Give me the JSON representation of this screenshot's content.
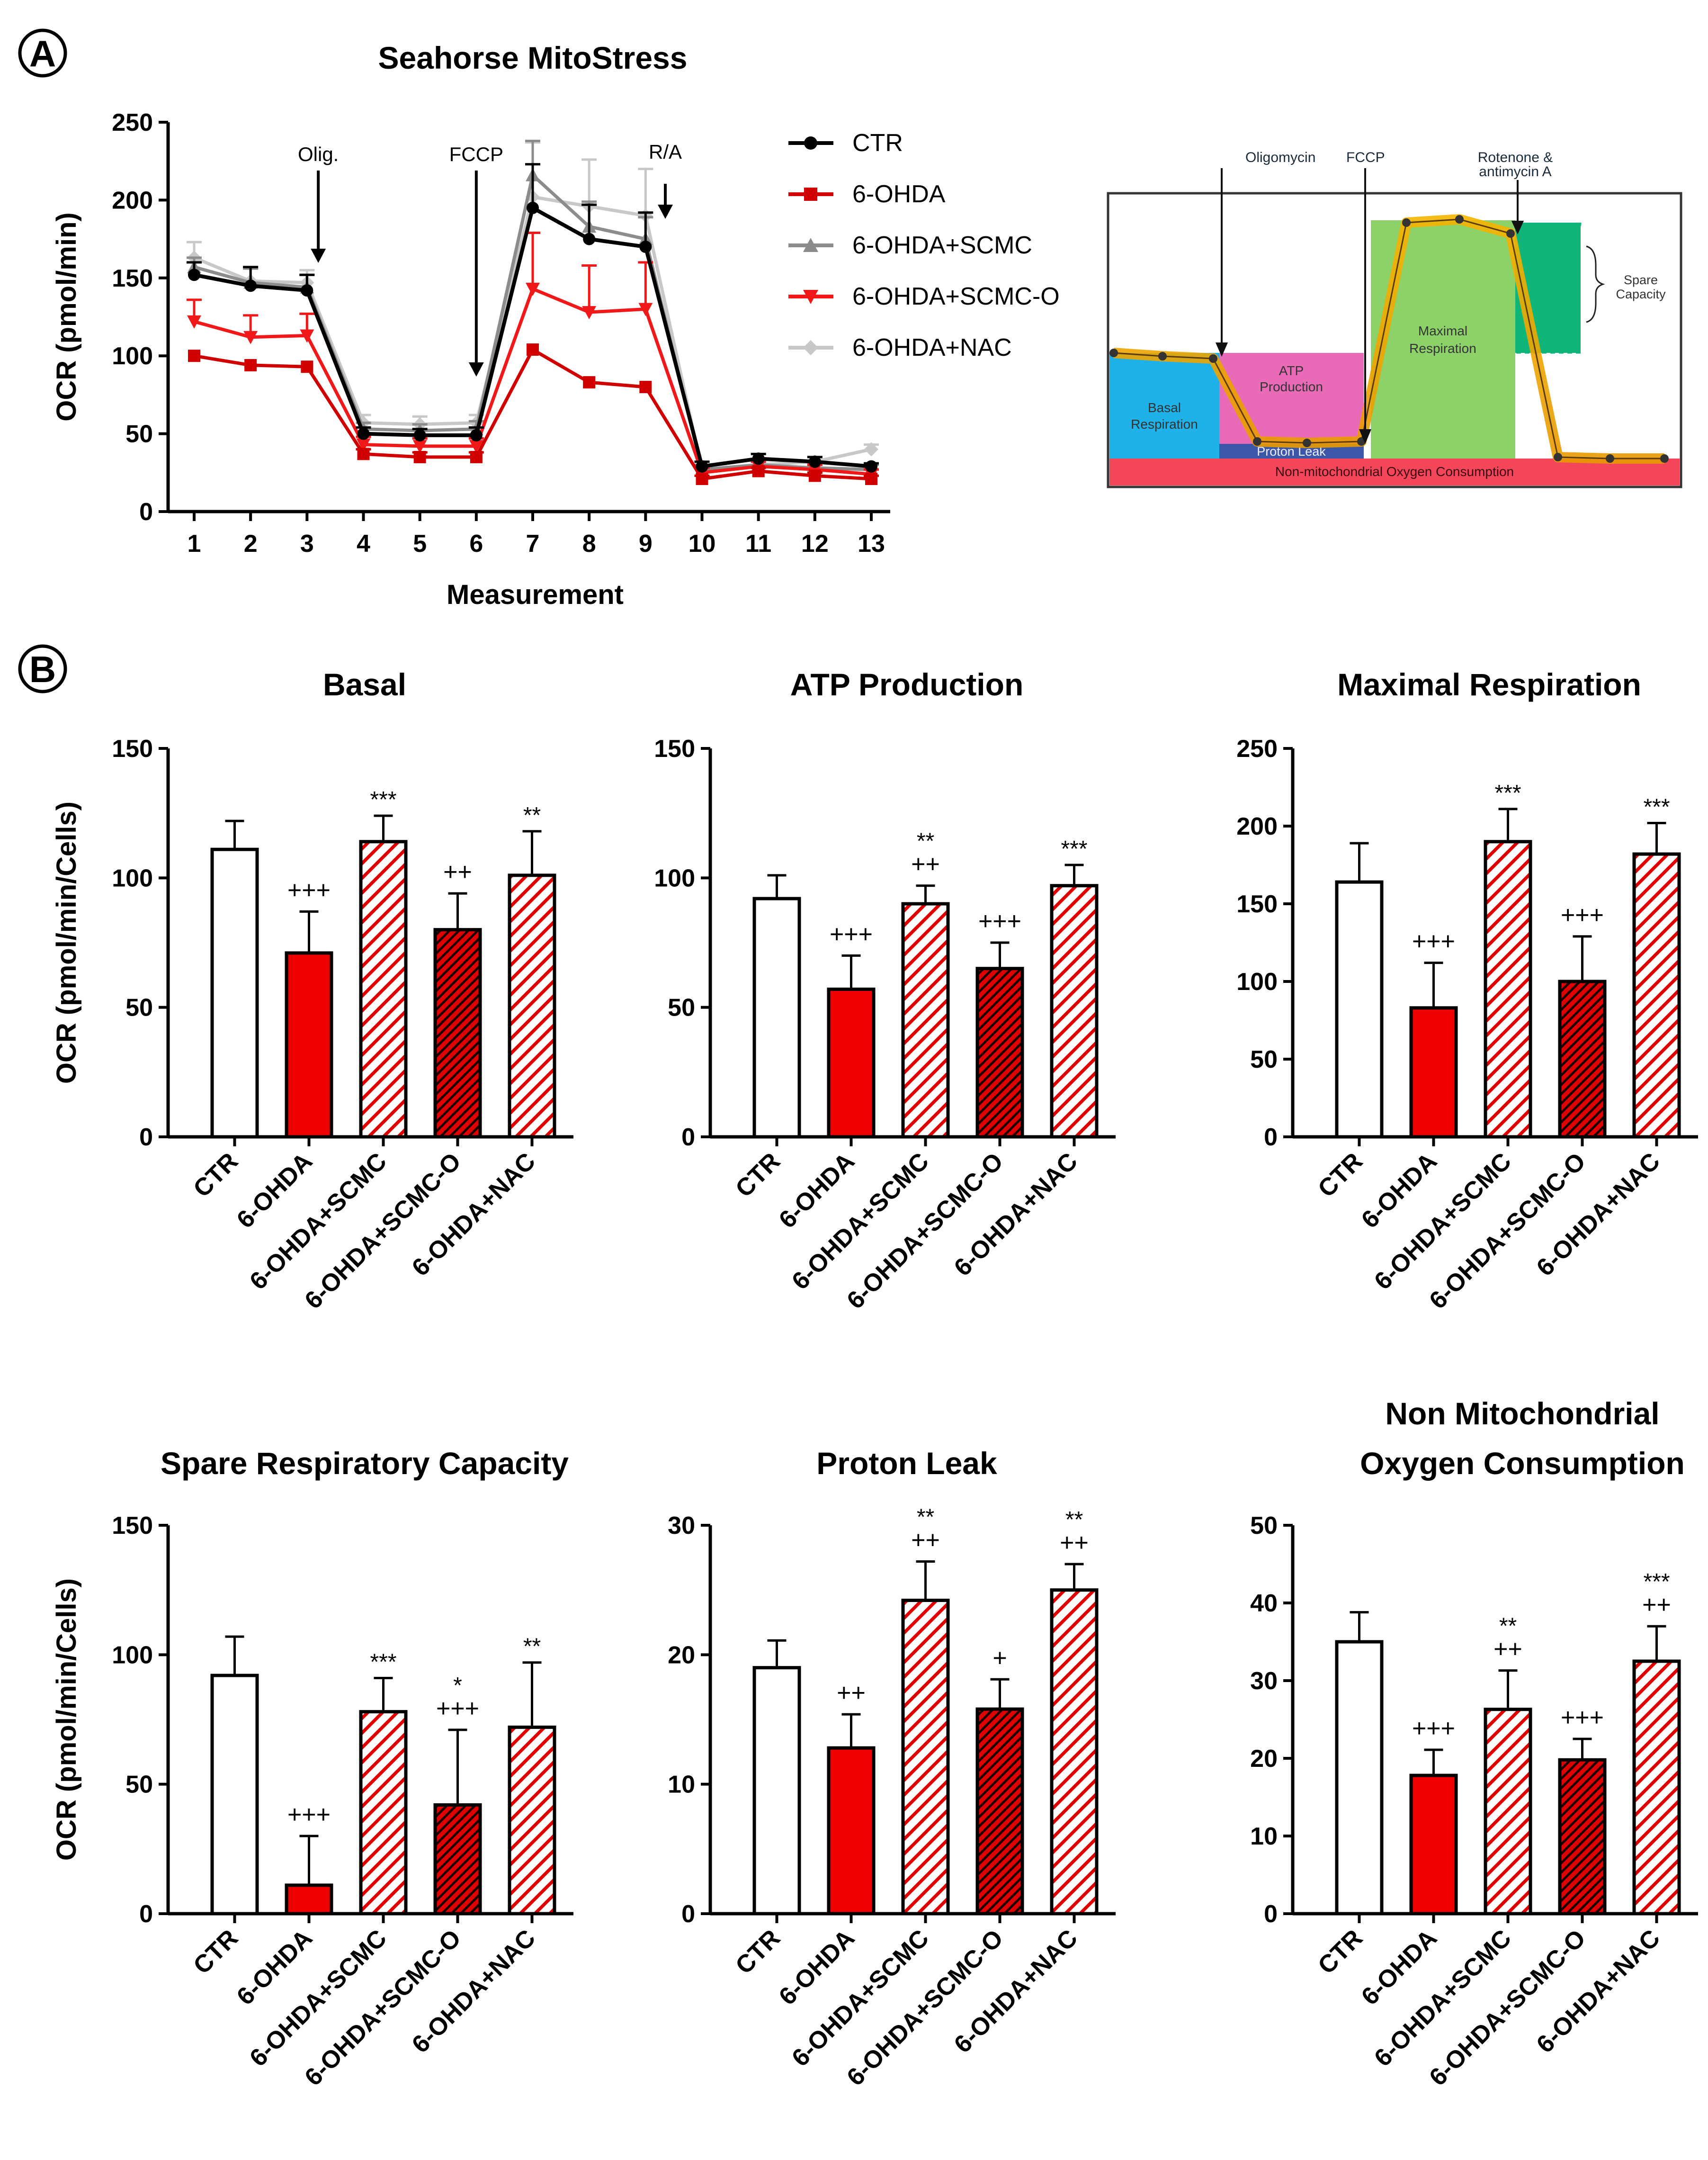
{
  "panel_labels": {
    "a": "A",
    "b": "B"
  },
  "colors": {
    "black": "#000000",
    "red": "#e00000",
    "gray": "#8c8c8c",
    "red2": "#f02020",
    "light": "#cfcfcf",
    "darkred": "#b00000"
  },
  "chart_data": [
    {
      "type": "line",
      "title": "Seahorse  MitoStress",
      "xlabel": "Measurement",
      "ylabel": "OCR (pmol/min)",
      "x": [
        1,
        2,
        3,
        4,
        5,
        6,
        7,
        8,
        9,
        10,
        11,
        12,
        13
      ],
      "ylim": [
        0,
        250
      ],
      "yticks": [
        0,
        50,
        100,
        150,
        200,
        250
      ],
      "annotations": [
        {
          "label": "Olig.",
          "x": 3.2
        },
        {
          "label": "FCCP",
          "x": 6.0
        },
        {
          "label": "R/A",
          "x": 9.35
        }
      ],
      "series": [
        {
          "name": "CTR",
          "color": "#000000",
          "marker": "circle",
          "values": [
            152,
            145,
            142,
            50,
            49,
            49,
            195,
            175,
            170,
            29,
            34,
            32,
            29
          ],
          "err": [
            8,
            12,
            10,
            4,
            4,
            5,
            28,
            22,
            22,
            3,
            3,
            3,
            2
          ]
        },
        {
          "name": "6-OHDA",
          "color": "#d00000",
          "marker": "square",
          "values": [
            100,
            94,
            93,
            37,
            35,
            35,
            104,
            83,
            80,
            21,
            26,
            23,
            21
          ],
          "err": [
            0,
            0,
            0,
            3,
            3,
            3,
            0,
            0,
            0,
            2,
            2,
            2,
            2
          ]
        },
        {
          "name": "6-OHDA+SCMC",
          "color": "#8c8c8c",
          "marker": "triangle",
          "values": [
            157,
            147,
            144,
            53,
            52,
            53,
            216,
            183,
            175,
            27,
            30,
            28,
            27
          ],
          "err": [
            6,
            9,
            8,
            4,
            4,
            5,
            22,
            16,
            14,
            3,
            3,
            3,
            3
          ]
        },
        {
          "name": "6-OHDA+SCMC-O",
          "color": "#f01818",
          "marker": "triangle-down",
          "values": [
            122,
            112,
            113,
            43,
            42,
            42,
            143,
            128,
            130,
            25,
            29,
            27,
            24
          ],
          "err": [
            14,
            14,
            14,
            5,
            5,
            5,
            36,
            30,
            30,
            3,
            3,
            3,
            3
          ]
        },
        {
          "name": "6-OHDA+NAC",
          "color": "#c8c8c8",
          "marker": "diamond",
          "values": [
            163,
            148,
            147,
            57,
            56,
            57,
            202,
            196,
            190,
            27,
            30,
            32,
            40
          ],
          "err": [
            10,
            9,
            8,
            5,
            5,
            5,
            35,
            30,
            30,
            3,
            3,
            3,
            3
          ]
        }
      ]
    },
    {
      "type": "bar",
      "title": "Basal",
      "ylabel": "OCR (pmol/min/Cells)",
      "ylim": [
        0,
        150
      ],
      "yticks": [
        0,
        50,
        100,
        150
      ],
      "categories": [
        "CTR",
        "6-OHDA",
        "6-OHDA+SCMC",
        "6-OHDA+SCMC-O",
        "6-OHDA+NAC"
      ],
      "values": [
        111,
        71,
        114,
        80,
        101
      ],
      "err": [
        11,
        16,
        10,
        14,
        17
      ],
      "annotations": [
        [],
        [
          "+++"
        ],
        [
          "***"
        ],
        [
          "++"
        ],
        [
          "**"
        ]
      ]
    },
    {
      "type": "bar",
      "title": "ATP Production",
      "ylabel": "",
      "ylim": [
        0,
        150
      ],
      "yticks": [
        0,
        50,
        100,
        150
      ],
      "categories": [
        "CTR",
        "6-OHDA",
        "6-OHDA+SCMC",
        "6-OHDA+SCMC-O",
        "6-OHDA+NAC"
      ],
      "values": [
        92,
        57,
        90,
        65,
        97
      ],
      "err": [
        9,
        13,
        7,
        10,
        8
      ],
      "annotations": [
        [],
        [
          "+++"
        ],
        [
          "**",
          "++"
        ],
        [
          "+++"
        ],
        [
          "***"
        ]
      ]
    },
    {
      "type": "bar",
      "title": "Maximal Respiration",
      "ylabel": "",
      "ylim": [
        0,
        250
      ],
      "yticks": [
        0,
        50,
        100,
        150,
        200,
        250
      ],
      "categories": [
        "CTR",
        "6-OHDA",
        "6-OHDA+SCMC",
        "6-OHDA+SCMC-O",
        "6-OHDA+NAC"
      ],
      "values": [
        164,
        83,
        190,
        100,
        182
      ],
      "err": [
        25,
        29,
        21,
        29,
        20
      ],
      "annotations": [
        [],
        [
          "+++"
        ],
        [
          "***"
        ],
        [
          "+++"
        ],
        [
          "***"
        ]
      ]
    },
    {
      "type": "bar",
      "title": "Spare Respiratory Capacity",
      "ylabel": "OCR (pmol/min/Cells)",
      "ylim": [
        0,
        150
      ],
      "yticks": [
        0,
        50,
        100,
        150
      ],
      "categories": [
        "CTR",
        "6-OHDA",
        "6-OHDA+SCMC",
        "6-OHDA+SCMC-O",
        "6-OHDA+NAC"
      ],
      "values": [
        92,
        11,
        78,
        42,
        72
      ],
      "err": [
        15,
        19,
        13,
        29,
        25
      ],
      "annotations": [
        [],
        [
          "+++"
        ],
        [
          "***"
        ],
        [
          "*",
          "+++"
        ],
        [
          "**"
        ]
      ]
    },
    {
      "type": "bar",
      "title": "Proton Leak",
      "ylabel": "",
      "ylim": [
        0,
        30
      ],
      "yticks": [
        0,
        10,
        20,
        30
      ],
      "categories": [
        "CTR",
        "6-OHDA",
        "6-OHDA+SCMC",
        "6-OHDA+SCMC-O",
        "6-OHDA+NAC"
      ],
      "values": [
        19,
        12.8,
        24.2,
        15.8,
        25
      ],
      "err": [
        2.1,
        2.6,
        3,
        2.3,
        2
      ],
      "annotations": [
        [],
        [
          "++"
        ],
        [
          "**",
          "++"
        ],
        [
          "+"
        ],
        [
          "**",
          "++"
        ]
      ]
    },
    {
      "type": "bar",
      "title": "Non Mitochondrial Oxygen Consumption",
      "title_lines": [
        "Non Mitochondrial",
        "Oxygen Consumption"
      ],
      "ylabel": "",
      "ylim": [
        0,
        50
      ],
      "yticks": [
        0,
        10,
        20,
        30,
        40,
        50
      ],
      "categories": [
        "CTR",
        "6-OHDA",
        "6-OHDA+SCMC",
        "6-OHDA+SCMC-O",
        "6-OHDA+NAC"
      ],
      "values": [
        35,
        17.8,
        26.3,
        19.8,
        32.5
      ],
      "err": [
        3.8,
        3.3,
        5,
        2.7,
        4.5
      ],
      "annotations": [
        [],
        [
          "+++"
        ],
        [
          "**",
          "++"
        ],
        [
          "+++"
        ],
        [
          "***",
          "++"
        ]
      ]
    }
  ],
  "schematic": {
    "labels": {
      "oligomycin": "Oligomycin",
      "fccp": "FCCP",
      "rotenone_1": "Rotenone &",
      "rotenone_2": "antimycin A",
      "spare_1": "Spare",
      "spare_2": "Capacity",
      "maximal_1": "Maximal",
      "maximal_2": "Respiration",
      "atp_1": "ATP",
      "atp_2": "Production",
      "basal_1": "Basal",
      "basal_2": "Respiration",
      "proton": "Proton Leak",
      "nonmito": "Non-mitochondrial Oxygen Consumption"
    }
  }
}
